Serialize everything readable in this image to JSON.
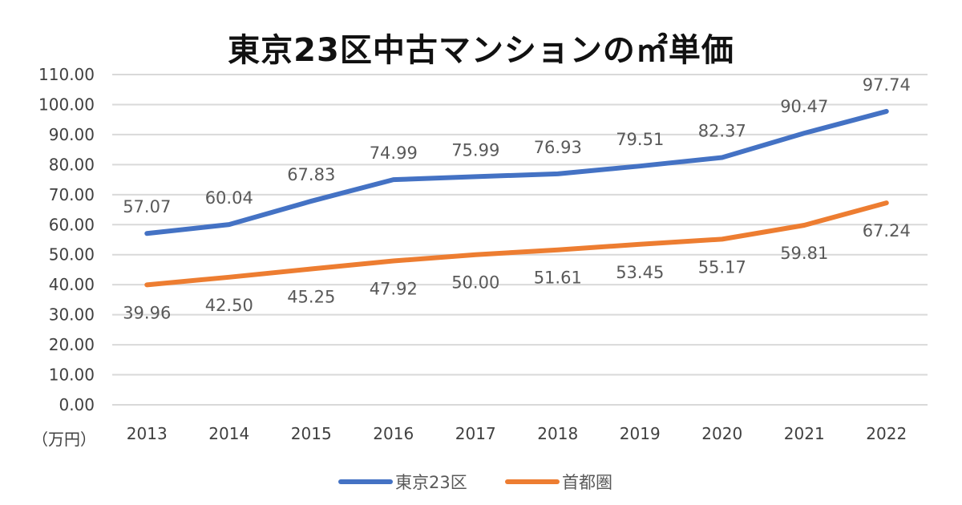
{
  "chart_data": {
    "type": "line",
    "title": "東京23区中古マンションの㎡単価",
    "ylabel": "（万円）",
    "categories": [
      "2013",
      "2014",
      "2015",
      "2016",
      "2017",
      "2018",
      "2019",
      "2020",
      "2021",
      "2022"
    ],
    "ylim": [
      0,
      110
    ],
    "yticks": [
      "0.00",
      "10.00",
      "20.00",
      "30.00",
      "40.00",
      "50.00",
      "60.00",
      "70.00",
      "80.00",
      "90.00",
      "100.00",
      "110.00"
    ],
    "grid": true,
    "legend": "bottom",
    "series": [
      {
        "name": "東京23区",
        "color": "#4472C4",
        "values": [
          57.07,
          60.04,
          67.83,
          74.99,
          75.99,
          76.93,
          79.51,
          82.37,
          90.47,
          97.74
        ],
        "labels": [
          "57.07",
          "60.04",
          "67.83",
          "74.99",
          "75.99",
          "76.93",
          "79.51",
          "82.37",
          "90.47",
          "97.74"
        ],
        "label_position": "above"
      },
      {
        "name": "首都圏",
        "color": "#ED7D31",
        "values": [
          39.96,
          42.5,
          45.25,
          47.92,
          50.0,
          51.61,
          53.45,
          55.17,
          59.81,
          67.24
        ],
        "labels": [
          "39.96",
          "42.50",
          "45.25",
          "47.92",
          "50.00",
          "51.61",
          "53.45",
          "55.17",
          "59.81",
          "67.24"
        ],
        "label_position": "below"
      }
    ]
  }
}
